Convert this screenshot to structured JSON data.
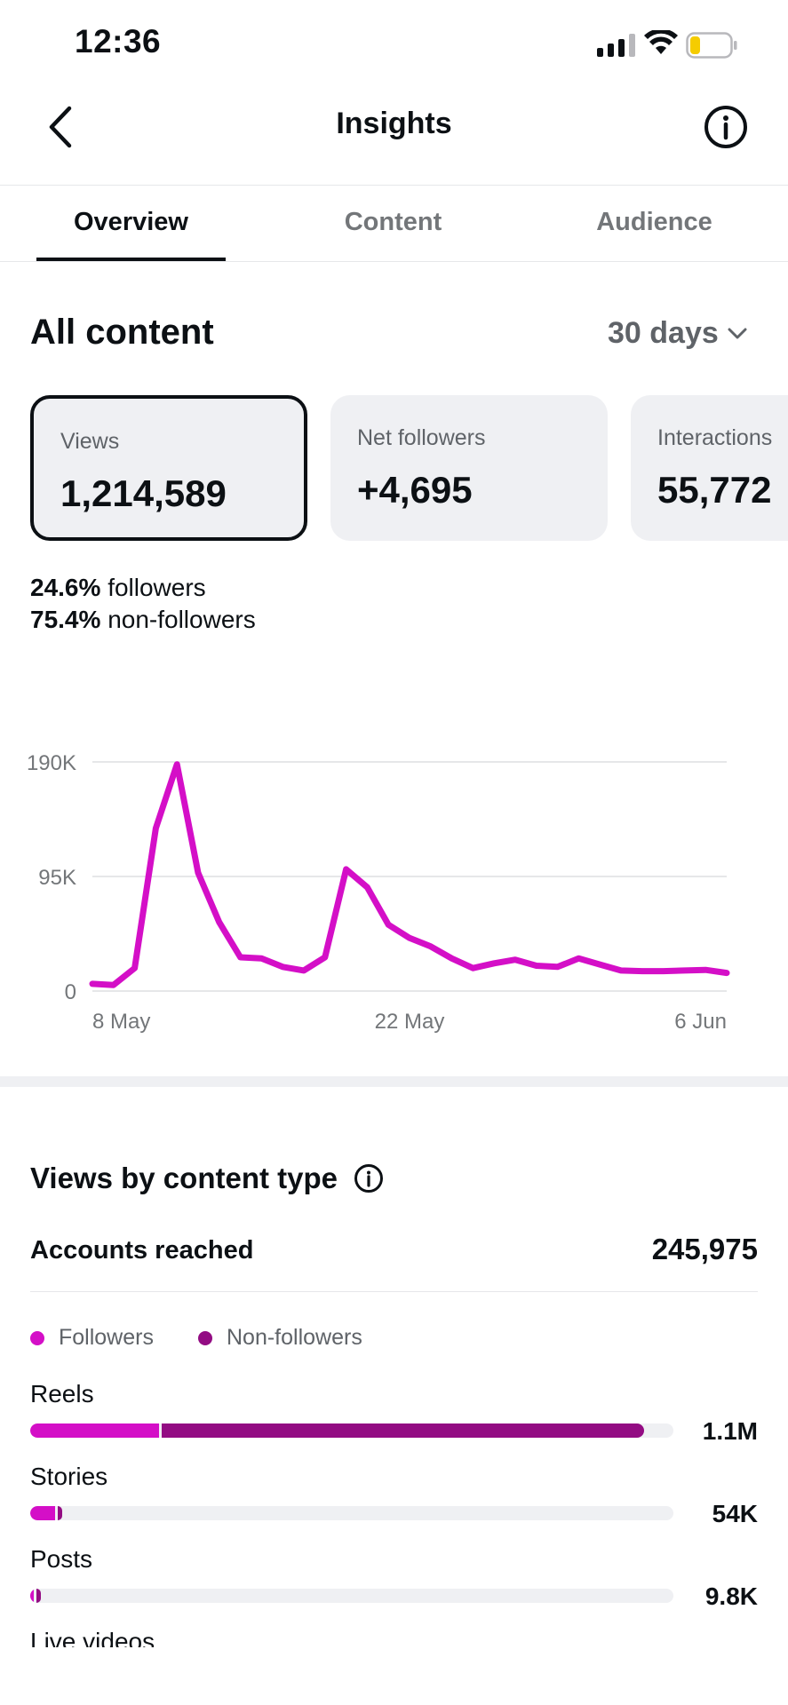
{
  "status_bar": {
    "time": "12:36"
  },
  "header": {
    "title": "Insights"
  },
  "tabs": [
    {
      "label": "Overview",
      "active": true
    },
    {
      "label": "Content",
      "active": false
    },
    {
      "label": "Audience",
      "active": false
    }
  ],
  "section": {
    "title": "All content",
    "range": "30 days"
  },
  "cards": [
    {
      "label": "Views",
      "value": "1,214,589",
      "selected": true
    },
    {
      "label": "Net followers",
      "value": "+4,695",
      "selected": false
    },
    {
      "label": "Interactions",
      "value": "55,772",
      "selected": false
    }
  ],
  "split": {
    "followers_pct": "24.6%",
    "followers_label": "followers",
    "nonfollowers_pct": "75.4%",
    "nonfollowers_label": "non-followers"
  },
  "chart_data": {
    "type": "line",
    "title": "",
    "xlabel": "",
    "ylabel": "",
    "x_tick_labels": [
      "8 May",
      "22 May",
      "6 Jun"
    ],
    "y_tick_labels": [
      "190K",
      "95K",
      "0"
    ],
    "ylim": [
      0,
      190000
    ],
    "grid": true,
    "line_color": "#d40fc7",
    "x": [
      "7 May",
      "8 May",
      "9 May",
      "10 May",
      "11 May",
      "12 May",
      "13 May",
      "14 May",
      "15 May",
      "16 May",
      "17 May",
      "18 May",
      "19 May",
      "20 May",
      "21 May",
      "22 May",
      "23 May",
      "24 May",
      "25 May",
      "26 May",
      "27 May",
      "28 May",
      "29 May",
      "30 May",
      "31 May",
      "1 Jun",
      "2 Jun",
      "3 Jun",
      "4 Jun",
      "5 Jun",
      "6 Jun"
    ],
    "values": [
      6000,
      5000,
      19000,
      135000,
      188000,
      98000,
      57000,
      28000,
      27000,
      20000,
      17000,
      28000,
      101000,
      86000,
      55000,
      44000,
      37000,
      27000,
      19000,
      23000,
      26000,
      21000,
      20000,
      27000,
      22000,
      17000,
      16500,
      16500,
      17000,
      17500,
      15000
    ]
  },
  "views_by_type": {
    "title": "Views by content type",
    "accounts_reached_label": "Accounts reached",
    "accounts_reached_value": "245,975",
    "legend": [
      {
        "label": "Followers",
        "color": "#d40fc7"
      },
      {
        "label": "Non-followers",
        "color": "#930c83"
      }
    ],
    "rows": [
      {
        "label": "Reels",
        "value": "1.1M",
        "followers_frac": 0.2,
        "nonfollowers_frac": 0.75
      },
      {
        "label": "Stories",
        "value": "54K",
        "followers_frac": 0.038,
        "nonfollowers_frac": 0.008
      },
      {
        "label": "Posts",
        "value": "9.8K",
        "followers_frac": 0.006,
        "nonfollowers_frac": 0.006
      },
      {
        "label": "Live videos",
        "value": ""
      }
    ]
  },
  "colors": {
    "accent": "#d40fc7",
    "accent_dark": "#930c83",
    "track": "#eff0f3"
  }
}
